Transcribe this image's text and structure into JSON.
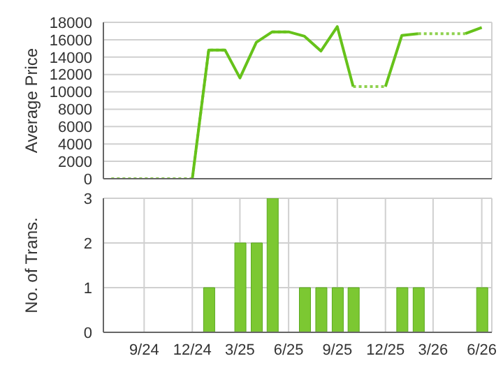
{
  "chart_data": [
    {
      "type": "line",
      "ylabel": "Average Price",
      "x": [
        "2024-07",
        "2024-08",
        "2024-09",
        "2024-10",
        "2024-11",
        "2024-12",
        "2025-01",
        "2025-02",
        "2025-03",
        "2025-04",
        "2025-05",
        "2025-06",
        "2025-07",
        "2025-08",
        "2025-09",
        "2025-10",
        "2025-11",
        "2025-12",
        "2026-01",
        "2026-02",
        "2026-03",
        "2026-04",
        "2026-05",
        "2026-06"
      ],
      "series": [
        {
          "color": "#8fd14f",
          "line_style": "dotted",
          "values": [
            0,
            0,
            0,
            0,
            0,
            0,
            14800,
            14800,
            null,
            null,
            16900,
            16900,
            null,
            null,
            null,
            10600,
            10600,
            10600,
            null,
            16700,
            16700,
            16700,
            16700,
            null
          ]
        },
        {
          "color": "#66c21a",
          "line_style": "solid",
          "values": [
            null,
            null,
            null,
            null,
            null,
            0,
            14800,
            14800,
            11600,
            15700,
            16900,
            16900,
            16400,
            14700,
            17500,
            10600,
            null,
            10600,
            16500,
            16700,
            null,
            null,
            16700,
            17400
          ]
        }
      ],
      "xlim": [
        "2024-06-16",
        "2026-06-20"
      ],
      "ylim": [
        0,
        18000
      ],
      "yticks": [
        0,
        2000,
        4000,
        6000,
        8000,
        10000,
        12000,
        14000,
        16000,
        18000
      ],
      "xticks": [
        {
          "value": "2024-09",
          "label": null
        },
        {
          "value": "2024-12",
          "label": null
        },
        {
          "value": "2025-03",
          "label": null
        },
        {
          "value": "2025-06",
          "label": null
        },
        {
          "value": "2025-09",
          "label": null
        },
        {
          "value": "2025-12",
          "label": null
        },
        {
          "value": "2026-03",
          "label": null
        },
        {
          "value": "2026-06",
          "label": null
        }
      ],
      "tick_labels": "y",
      "grid": true,
      "marker": "none"
    },
    {
      "type": "bar",
      "ylabel": "No. of Trans.",
      "x": [
        "2025-01",
        "2025-03",
        "2025-04",
        "2025-05",
        "2025-07",
        "2025-08",
        "2025-09",
        "2025-10",
        "2026-01",
        "2026-02",
        "2026-06"
      ],
      "values": [
        1,
        2,
        2,
        3,
        1,
        1,
        1,
        1,
        1,
        1,
        1
      ],
      "color": "#7cc832",
      "xlim": [
        "2024-06-16",
        "2026-06-20"
      ],
      "ylim": [
        0,
        3
      ],
      "yticks": [
        0,
        1,
        2,
        3
      ],
      "xticks": [
        {
          "value": "2024-09",
          "label": "9/24"
        },
        {
          "value": "2024-12",
          "label": "12/24"
        },
        {
          "value": "2025-03",
          "label": "3/25"
        },
        {
          "value": "2025-06",
          "label": "6/25"
        },
        {
          "value": "2025-09",
          "label": "9/25"
        },
        {
          "value": "2025-12",
          "label": "12/25"
        },
        {
          "value": "2026-03",
          "label": "3/26"
        },
        {
          "value": "2026-06",
          "label": "6/26"
        }
      ],
      "grid": true
    }
  ]
}
